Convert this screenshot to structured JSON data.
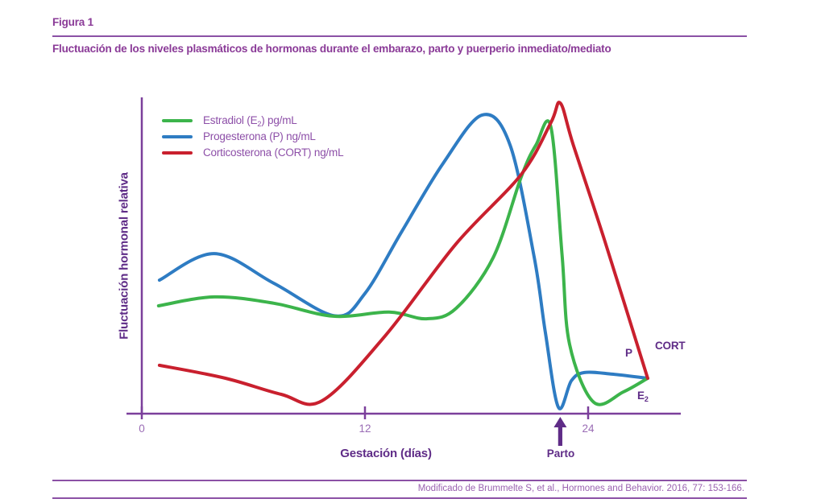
{
  "page": {
    "figure_label": "Figura 1",
    "figure_title": "Fluctuación de los niveles plasmáticos de hormonas durante el embarazo, parto y puerperio inmediato/mediato",
    "source_note": "Modificado de Brummelte S, et al., Hormones and Behavior. 2016, 77: 153-166."
  },
  "colors": {
    "heading_purple": "#8a3a97",
    "rule_purple": "#8b51a5",
    "axis_purple": "#7b3f9b",
    "dark_label_purple": "#5f2c87",
    "tick_label_purple": "#9a6cb5",
    "legend_text_purple": "#8d4fa8",
    "source_text_purple": "#9a62b0"
  },
  "chart_data": {
    "type": "line",
    "title": "",
    "xlabel": "Gestación (días)",
    "ylabel": "Fluctuación hormonal relativa",
    "x_ticks": [
      0,
      12,
      24
    ],
    "x_range_days": [
      0,
      29
    ],
    "y_range_relative": [
      0,
      100
    ],
    "y_tick_labels": [],
    "grid": false,
    "legend_position": "top-left",
    "annotations": [
      {
        "label": "Parto",
        "x_days": 22.5
      }
    ],
    "series": [
      {
        "key": "estradiol",
        "name": "Estradiol (E2) pg/mL",
        "legend": {
          "pre": "Estradiol (E",
          "sub": "2",
          "post": ") pg/mL"
        },
        "end_label": {
          "pre": "E",
          "sub": "2"
        },
        "color": "#3cb44b",
        "points": [
          [
            0.9,
            34.1
          ],
          [
            3.9,
            36.9
          ],
          [
            7.1,
            34.9
          ],
          [
            10.3,
            30.8
          ],
          [
            13.3,
            32.1
          ],
          [
            15.3,
            30.0
          ],
          [
            16.9,
            33.3
          ],
          [
            18.9,
            49.4
          ],
          [
            20.4,
            74.8
          ],
          [
            21.2,
            85.0
          ],
          [
            22.0,
            90.6
          ],
          [
            22.6,
            50.0
          ],
          [
            23.0,
            22.0
          ],
          [
            24.3,
            3.6
          ],
          [
            25.9,
            6.9
          ],
          [
            27.2,
            11.2
          ]
        ]
      },
      {
        "key": "progesterona",
        "name": "Progesterona (P) ng/mL",
        "legend": {
          "pre": "Progesterona (P) ng/mL",
          "sub": "",
          "post": ""
        },
        "end_label": {
          "pre": "P",
          "sub": ""
        },
        "color": "#2e7cc3",
        "points": [
          [
            0.95,
            42.2
          ],
          [
            3.9,
            50.6
          ],
          [
            7.1,
            41.2
          ],
          [
            10.4,
            30.9
          ],
          [
            12.0,
            38.0
          ],
          [
            14.0,
            57.8
          ],
          [
            16.2,
            79.1
          ],
          [
            18.3,
            94.4
          ],
          [
            19.8,
            85.0
          ],
          [
            21.1,
            49.4
          ],
          [
            21.7,
            25.7
          ],
          [
            22.4,
            2.0
          ],
          [
            23.1,
            10.4
          ],
          [
            23.8,
            13.0
          ],
          [
            25.3,
            12.5
          ],
          [
            27.2,
            11.2
          ]
        ]
      },
      {
        "key": "corticosterona",
        "name": "Corticosterona (CORT) ng/mL",
        "legend": {
          "pre": "Corticosterona (CORT) ng/mL",
          "sub": "",
          "post": ""
        },
        "end_label": {
          "pre": "CORT",
          "sub": ""
        },
        "color": "#c9202e",
        "points": [
          [
            0.95,
            15.3
          ],
          [
            4.5,
            11.2
          ],
          [
            7.5,
            6.1
          ],
          [
            9.7,
            4.1
          ],
          [
            13.1,
            24.7
          ],
          [
            16.9,
            53.7
          ],
          [
            20.4,
            75.6
          ],
          [
            22.0,
            92.0
          ],
          [
            22.5,
            98.2
          ],
          [
            23.2,
            85.0
          ],
          [
            24.9,
            54.5
          ],
          [
            27.2,
            11.2
          ]
        ]
      }
    ]
  }
}
